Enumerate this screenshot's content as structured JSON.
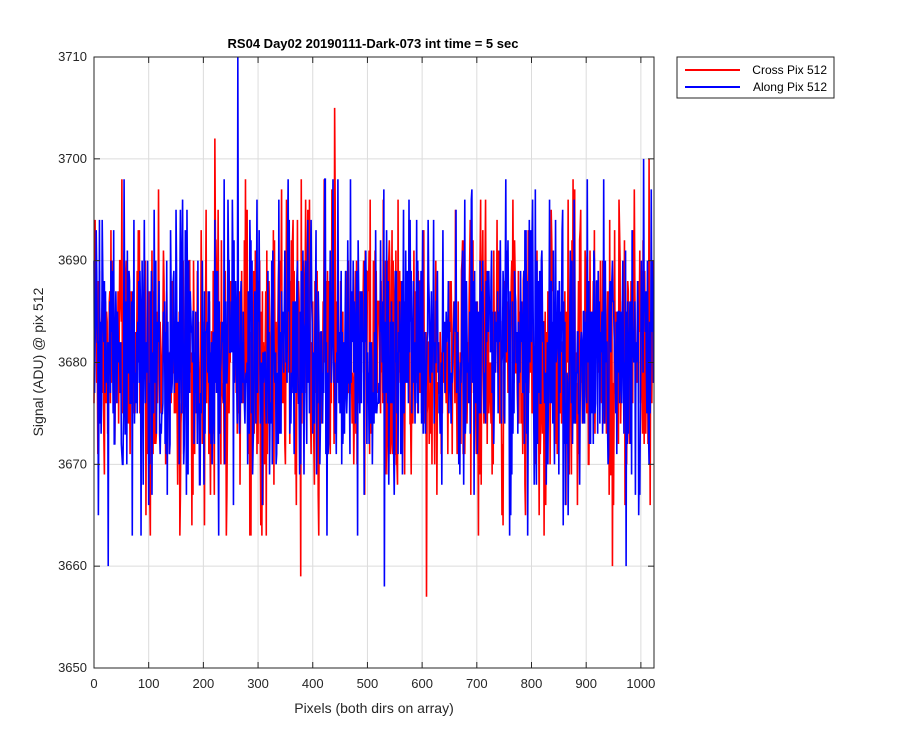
{
  "chart_data": {
    "type": "line",
    "title": "RS04 Day02 20190111-Dark-073 int time = 5 sec",
    "xlabel": "Pixels (both dirs on array)",
    "ylabel": "Signal (ADU) @ pix 512",
    "xlim": [
      0,
      1024
    ],
    "ylim": [
      3650,
      3710
    ],
    "xticks": [
      0,
      100,
      200,
      300,
      400,
      500,
      600,
      700,
      800,
      900,
      1000
    ],
    "yticks": [
      3650,
      3660,
      3670,
      3680,
      3690,
      3700,
      3710
    ],
    "grid": true,
    "legend_position": "outside-top-right",
    "series": [
      {
        "name": "Cross Pix 512",
        "color": "#ff0000",
        "mean": 3681,
        "std": 7,
        "n_points": 1024,
        "notable_points": [
          {
            "x": 221,
            "y": 3702
          },
          {
            "x": 440,
            "y": 3705
          },
          {
            "x": 378,
            "y": 3659
          },
          {
            "x": 608,
            "y": 3657
          },
          {
            "x": 948,
            "y": 3660
          },
          {
            "x": 1015,
            "y": 3700
          }
        ]
      },
      {
        "name": "Along Pix 512",
        "color": "#0000ff",
        "mean": 3681,
        "std": 7,
        "n_points": 1024,
        "notable_points": [
          {
            "x": 263,
            "y": 3710
          },
          {
            "x": 26,
            "y": 3660
          },
          {
            "x": 531,
            "y": 3658
          },
          {
            "x": 973,
            "y": 3660
          },
          {
            "x": 1005,
            "y": 3700
          }
        ]
      }
    ]
  }
}
